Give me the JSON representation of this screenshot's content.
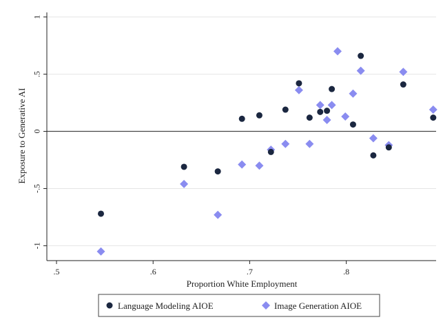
{
  "chart_data": {
    "type": "scatter",
    "title": "",
    "xlabel": "Proportion White Employment",
    "ylabel": "Exposure to Generative AI",
    "xlim": [
      0.49,
      0.893
    ],
    "ylim": [
      -1.13,
      1.04
    ],
    "x_ticks": [
      0.5,
      0.6,
      0.7,
      0.8
    ],
    "x_tick_labels": [
      ".5",
      ".6",
      ".7",
      ".8"
    ],
    "y_ticks": [
      1,
      0.5,
      0,
      -0.5,
      -1
    ],
    "y_tick_labels": [
      "1",
      ".5",
      "0",
      "-.5",
      "-1"
    ],
    "reference_line_y": 0,
    "grid": "horizontal",
    "legend_position": "bottom",
    "colors": {
      "language": "#1b2740",
      "image": "#8a8cf0",
      "grid": "#e4e4e4",
      "axis": "#222222",
      "legend_border": "#444444"
    },
    "series": [
      {
        "name": "Language Modeling AIOE",
        "marker": "circle",
        "points": [
          [
            0.546,
            -0.72
          ],
          [
            0.632,
            -0.31
          ],
          [
            0.667,
            -0.35
          ],
          [
            0.692,
            0.11
          ],
          [
            0.71,
            0.14
          ],
          [
            0.722,
            -0.18
          ],
          [
            0.737,
            0.19
          ],
          [
            0.751,
            0.42
          ],
          [
            0.762,
            0.12
          ],
          [
            0.773,
            0.17
          ],
          [
            0.78,
            0.18
          ],
          [
            0.785,
            0.37
          ],
          [
            0.807,
            0.06
          ],
          [
            0.815,
            0.66
          ],
          [
            0.828,
            -0.21
          ],
          [
            0.844,
            -0.14
          ],
          [
            0.859,
            0.41
          ],
          [
            0.89,
            0.12
          ]
        ]
      },
      {
        "name": "Image Generation AIOE",
        "marker": "diamond",
        "points": [
          [
            0.546,
            -1.05
          ],
          [
            0.632,
            -0.46
          ],
          [
            0.667,
            -0.73
          ],
          [
            0.692,
            -0.29
          ],
          [
            0.71,
            -0.3
          ],
          [
            0.722,
            -0.16
          ],
          [
            0.737,
            -0.11
          ],
          [
            0.751,
            0.36
          ],
          [
            0.762,
            -0.11
          ],
          [
            0.773,
            0.23
          ],
          [
            0.78,
            0.1
          ],
          [
            0.785,
            0.23
          ],
          [
            0.791,
            0.7
          ],
          [
            0.799,
            0.13
          ],
          [
            0.807,
            0.33
          ],
          [
            0.815,
            0.53
          ],
          [
            0.828,
            -0.06
          ],
          [
            0.844,
            -0.12
          ],
          [
            0.859,
            0.52
          ],
          [
            0.89,
            0.19
          ]
        ]
      }
    ]
  }
}
